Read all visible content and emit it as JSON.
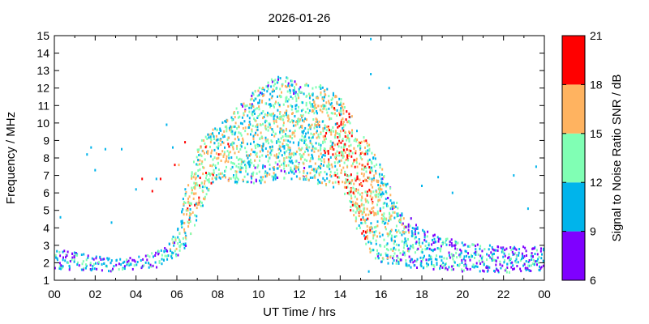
{
  "chart_data": {
    "type": "scatter",
    "title": "2026-01-26",
    "xlabel": "UT Time / hrs",
    "ylabel": "Frequency / MHz",
    "xlim": [
      0,
      24
    ],
    "ylim": [
      1,
      15
    ],
    "x_ticks": [
      "00",
      "02",
      "04",
      "06",
      "08",
      "10",
      "12",
      "14",
      "16",
      "18",
      "20",
      "22",
      "00"
    ],
    "y_ticks": [
      "1",
      "2",
      "3",
      "4",
      "5",
      "6",
      "7",
      "8",
      "9",
      "10",
      "11",
      "12",
      "13",
      "14",
      "15"
    ],
    "grid": false,
    "colorbar": {
      "label": "Signal to Noise Ratio SNR / dB",
      "range": [
        6,
        21
      ],
      "ticks": [
        "6",
        "9",
        "12",
        "15",
        "18",
        "21"
      ],
      "bands": [
        {
          "from": 6,
          "to": 9,
          "color": "#7f00ff"
        },
        {
          "from": 9,
          "to": 12,
          "color": "#00b4eb"
        },
        {
          "from": 12,
          "to": 15,
          "color": "#80ffb4"
        },
        {
          "from": 15,
          "to": 18,
          "color": "#ffb360"
        },
        {
          "from": 18,
          "to": 21,
          "color": "#ff0000"
        }
      ]
    },
    "profile": {
      "hour": [
        0,
        1,
        2,
        3,
        4,
        5,
        5.5,
        6,
        6.5,
        7,
        7.5,
        8,
        9,
        10,
        11,
        12,
        13,
        14,
        14.5,
        15,
        15.5,
        16,
        17,
        18,
        19,
        20,
        21,
        22,
        23,
        24
      ],
      "lower_mhz": [
        1.6,
        1.6,
        1.5,
        1.5,
        1.6,
        1.7,
        2.0,
        2.3,
        3.0,
        4.5,
        6.0,
        6.8,
        6.5,
        6.5,
        6.8,
        6.8,
        6.5,
        6.0,
        5.0,
        3.5,
        2.5,
        2.0,
        1.8,
        1.6,
        1.6,
        1.5,
        1.5,
        1.4,
        1.5,
        1.5
      ],
      "upper_mhz": [
        2.8,
        2.6,
        2.4,
        2.2,
        2.3,
        2.7,
        3.0,
        3.8,
        6.5,
        8.5,
        9.5,
        9.8,
        11.0,
        12.0,
        12.8,
        12.3,
        12.2,
        11.5,
        10.5,
        9.5,
        8.8,
        7.5,
        5.0,
        4.0,
        3.5,
        3.2,
        3.0,
        3.0,
        3.0,
        3.0
      ],
      "mean_snr_db": [
        11,
        11,
        11,
        11,
        11,
        11,
        12,
        13,
        15,
        16,
        16,
        15,
        14,
        14,
        14,
        14,
        15,
        16,
        17,
        17,
        16,
        14,
        13,
        12,
        11.5,
        11,
        11,
        10.5,
        10.5,
        10.5
      ]
    },
    "time_resolution_hrs": 0.1,
    "outliers": [
      {
        "x": 0.3,
        "y": 4.6,
        "snr": 10
      },
      {
        "x": 1.6,
        "y": 8.2,
        "snr": 10
      },
      {
        "x": 1.8,
        "y": 8.6,
        "snr": 10
      },
      {
        "x": 2.0,
        "y": 7.3,
        "snr": 10
      },
      {
        "x": 2.5,
        "y": 8.5,
        "snr": 10
      },
      {
        "x": 2.8,
        "y": 4.3,
        "snr": 10
      },
      {
        "x": 3.3,
        "y": 8.5,
        "snr": 10
      },
      {
        "x": 4.0,
        "y": 6.2,
        "snr": 10
      },
      {
        "x": 4.3,
        "y": 6.8,
        "snr": 20
      },
      {
        "x": 4.8,
        "y": 6.1,
        "snr": 19
      },
      {
        "x": 5.0,
        "y": 6.8,
        "snr": 10
      },
      {
        "x": 5.2,
        "y": 6.8,
        "snr": 19
      },
      {
        "x": 5.5,
        "y": 9.9,
        "snr": 10
      },
      {
        "x": 5.8,
        "y": 8.6,
        "snr": 10
      },
      {
        "x": 5.9,
        "y": 7.6,
        "snr": 19
      },
      {
        "x": 6.1,
        "y": 7.6,
        "snr": 16
      },
      {
        "x": 6.4,
        "y": 8.9,
        "snr": 19
      },
      {
        "x": 15.5,
        "y": 14.8,
        "snr": 10
      },
      {
        "x": 15.5,
        "y": 12.8,
        "snr": 10
      },
      {
        "x": 16.4,
        "y": 12.0,
        "snr": 10
      },
      {
        "x": 15.4,
        "y": 1.5,
        "snr": 10
      },
      {
        "x": 18.0,
        "y": 6.4,
        "snr": 10
      },
      {
        "x": 18.8,
        "y": 6.9,
        "snr": 10
      },
      {
        "x": 19.5,
        "y": 6.0,
        "snr": 10
      },
      {
        "x": 22.5,
        "y": 7.0,
        "snr": 10
      },
      {
        "x": 23.2,
        "y": 5.1,
        "snr": 10
      },
      {
        "x": 23.6,
        "y": 7.5,
        "snr": 10
      }
    ]
  }
}
